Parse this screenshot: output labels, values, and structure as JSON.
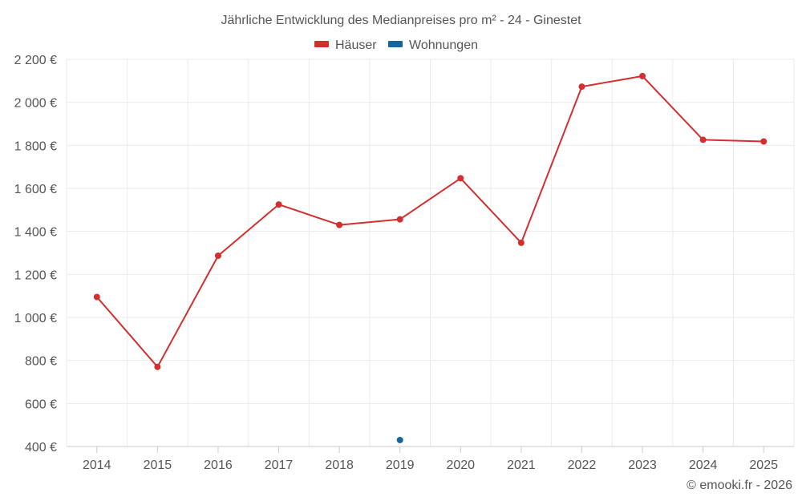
{
  "chart_data": {
    "type": "line",
    "title": "Jährliche Entwicklung des Medianpreises pro m² - 24 - Ginestet",
    "categories": [
      "2014",
      "2015",
      "2016",
      "2017",
      "2018",
      "2019",
      "2020",
      "2021",
      "2022",
      "2023",
      "2024",
      "2025"
    ],
    "y_ticks": [
      "400 €",
      "600 €",
      "800 €",
      "1 000 €",
      "1 200 €",
      "1 400 €",
      "1 600 €",
      "1 800 €",
      "2 000 €",
      "2 200 €"
    ],
    "y_tick_values": [
      400,
      600,
      800,
      1000,
      1200,
      1400,
      1600,
      1800,
      2000,
      2200
    ],
    "ylim": [
      400,
      2200
    ],
    "grid": true,
    "legend_position": "top-center",
    "series": [
      {
        "name": "Häuser",
        "color": "#d32f2f",
        "values": [
          1095,
          770,
          1287,
          1525,
          1430,
          1456,
          1647,
          1347,
          2073,
          2122,
          1826,
          1818
        ]
      },
      {
        "name": "Wohnungen",
        "color": "#1565a0",
        "values": [
          null,
          null,
          null,
          null,
          null,
          430,
          null,
          null,
          null,
          null,
          null,
          null
        ]
      }
    ]
  },
  "credit": "© emooki.fr - 2026"
}
